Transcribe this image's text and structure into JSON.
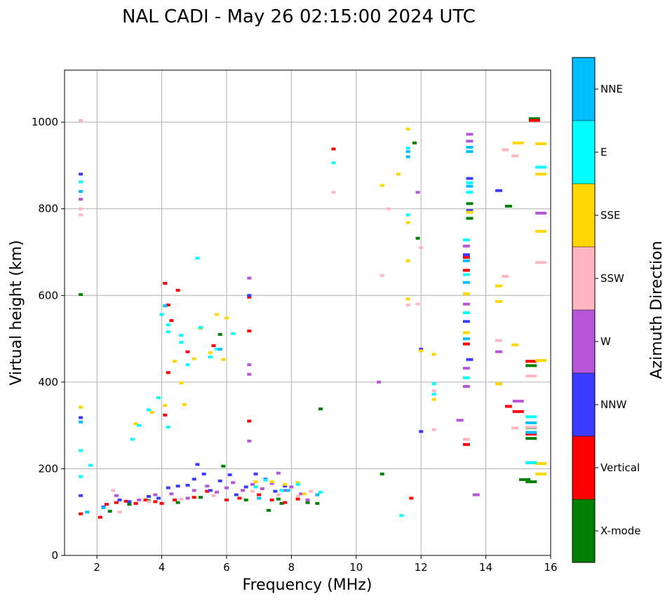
{
  "colors": {
    "X-mode": "#008000",
    "Vertical": "#ff0000",
    "NNW": "#3b3bff",
    "W": "#b557d6",
    "SSW": "#ffb6c1",
    "SSE": "#ffd700",
    "E": "#00ffff",
    "NNE": "#00bfff",
    "grid": "#b0b0b0"
  },
  "chart_data": {
    "type": "scatter",
    "title": "NAL CADI - May 26 02:15:00 2024 UTC",
    "xlabel": "Frequency (MHz)",
    "ylabel": "Virtual height (km)",
    "xlim": [
      1,
      16
    ],
    "ylim": [
      0,
      1120
    ],
    "xticks": [
      2,
      4,
      6,
      8,
      10,
      12,
      14,
      16
    ],
    "yticks": [
      0,
      200,
      400,
      600,
      800,
      1000
    ],
    "grid": true,
    "colorbar": {
      "title": "Azimuth Direction",
      "categories": [
        "X-mode",
        "Vertical",
        "NNW",
        "W",
        "SSW",
        "SSE",
        "E",
        "NNE"
      ]
    },
    "series": [
      {
        "name": "X-mode",
        "points": [
          [
            1.5,
            602
          ],
          [
            2.4,
            102
          ],
          [
            3.0,
            118
          ],
          [
            3.6,
            126
          ],
          [
            4.5,
            122
          ],
          [
            5.2,
            134
          ],
          [
            5.8,
            510
          ],
          [
            5.9,
            206
          ],
          [
            6.6,
            128
          ],
          [
            7.3,
            104
          ],
          [
            7.6,
            130
          ],
          [
            7.7,
            120
          ],
          [
            8.5,
            122
          ],
          [
            8.8,
            120
          ],
          [
            8.9,
            338
          ],
          [
            10.8,
            188
          ],
          [
            11.8,
            952
          ],
          [
            11.9,
            732
          ],
          [
            13.5,
            812
          ],
          [
            13.5,
            778
          ],
          [
            14.7,
            806
          ],
          [
            15.2,
            175
          ],
          [
            15.4,
            170
          ],
          [
            15.4,
            295
          ],
          [
            15.4,
            270
          ],
          [
            15.4,
            438
          ],
          [
            15.5,
            1008
          ]
        ]
      },
      {
        "name": "Vertical",
        "points": [
          [
            1.5,
            96
          ],
          [
            2.1,
            88
          ],
          [
            2.3,
            118
          ],
          [
            2.6,
            122
          ],
          [
            2.9,
            125
          ],
          [
            3.2,
            120
          ],
          [
            3.5,
            128
          ],
          [
            3.8,
            124
          ],
          [
            4.0,
            120
          ],
          [
            4.1,
            628
          ],
          [
            4.2,
            578
          ],
          [
            4.3,
            542
          ],
          [
            4.2,
            422
          ],
          [
            4.1,
            324
          ],
          [
            4.4,
            128
          ],
          [
            4.5,
            612
          ],
          [
            4.8,
            470
          ],
          [
            5.0,
            134
          ],
          [
            5.4,
            148
          ],
          [
            5.6,
            484
          ],
          [
            6.0,
            128
          ],
          [
            6.4,
            132
          ],
          [
            6.7,
            596
          ],
          [
            6.7,
            518
          ],
          [
            6.7,
            310
          ],
          [
            7.0,
            140
          ],
          [
            7.4,
            128
          ],
          [
            7.8,
            122
          ],
          [
            8.2,
            130
          ],
          [
            9.3,
            938
          ],
          [
            11.7,
            132
          ],
          [
            13.4,
            688
          ],
          [
            13.4,
            658
          ],
          [
            13.4,
            488
          ],
          [
            13.4,
            256
          ],
          [
            14.7,
            344
          ],
          [
            15.0,
            332
          ],
          [
            15.4,
            280
          ],
          [
            15.4,
            448
          ],
          [
            15.5,
            1004
          ]
        ]
      },
      {
        "name": "NNW",
        "points": [
          [
            1.5,
            880
          ],
          [
            1.5,
            318
          ],
          [
            1.5,
            138
          ],
          [
            2.2,
            112
          ],
          [
            2.7,
            128
          ],
          [
            3.0,
            124
          ],
          [
            3.6,
            136
          ],
          [
            3.9,
            132
          ],
          [
            4.2,
            156
          ],
          [
            4.5,
            160
          ],
          [
            4.8,
            162
          ],
          [
            5.0,
            176
          ],
          [
            5.1,
            210
          ],
          [
            5.3,
            188
          ],
          [
            5.5,
            150
          ],
          [
            5.8,
            172
          ],
          [
            6.1,
            186
          ],
          [
            6.3,
            140
          ],
          [
            6.6,
            158
          ],
          [
            6.7,
            600
          ],
          [
            6.9,
            188
          ],
          [
            7.2,
            176
          ],
          [
            7.5,
            148
          ],
          [
            7.8,
            160
          ],
          [
            12.0,
            476
          ],
          [
            12.0,
            286
          ],
          [
            13.5,
            870
          ],
          [
            13.5,
            796
          ],
          [
            13.4,
            694
          ],
          [
            13.4,
            540
          ],
          [
            13.5,
            452
          ],
          [
            14.4,
            842
          ],
          [
            15.4,
            214
          ]
        ]
      },
      {
        "name": "W",
        "points": [
          [
            1.5,
            822
          ],
          [
            2.6,
            138
          ],
          [
            3.3,
            128
          ],
          [
            3.8,
            140
          ],
          [
            4.3,
            142
          ],
          [
            4.8,
            132
          ],
          [
            5.0,
            150
          ],
          [
            5.4,
            160
          ],
          [
            5.7,
            146
          ],
          [
            6.0,
            156
          ],
          [
            6.2,
            168
          ],
          [
            6.5,
            150
          ],
          [
            6.7,
            640
          ],
          [
            6.7,
            440
          ],
          [
            6.7,
            418
          ],
          [
            6.7,
            264
          ],
          [
            6.8,
            164
          ],
          [
            7.1,
            154
          ],
          [
            7.4,
            166
          ],
          [
            7.6,
            190
          ],
          [
            7.8,
            150
          ],
          [
            8.0,
            158
          ],
          [
            8.3,
            142
          ],
          [
            8.5,
            128
          ],
          [
            10.7,
            400
          ],
          [
            11.9,
            838
          ],
          [
            13.2,
            312
          ],
          [
            13.5,
            972
          ],
          [
            13.5,
            956
          ],
          [
            13.4,
            714
          ],
          [
            13.4,
            580
          ],
          [
            13.4,
            432
          ],
          [
            13.4,
            390
          ],
          [
            13.7,
            140
          ],
          [
            14.4,
            470
          ],
          [
            15.0,
            356
          ],
          [
            15.7,
            790
          ]
        ]
      },
      {
        "name": "SSW",
        "points": [
          [
            1.5,
            1004
          ],
          [
            1.5,
            800
          ],
          [
            1.5,
            786
          ],
          [
            2.5,
            150
          ],
          [
            2.7,
            100
          ],
          [
            3.6,
            124
          ],
          [
            4.6,
            130
          ],
          [
            5.6,
            138
          ],
          [
            6.8,
            148
          ],
          [
            7.6,
            140
          ],
          [
            8.2,
            136
          ],
          [
            8.6,
            148
          ],
          [
            9.3,
            838
          ],
          [
            10.8,
            646
          ],
          [
            11.0,
            800
          ],
          [
            11.6,
            578
          ],
          [
            11.9,
            580
          ],
          [
            12.0,
            710
          ],
          [
            12.4,
            380
          ],
          [
            12.4,
            290
          ],
          [
            13.4,
            268
          ],
          [
            14.4,
            496
          ],
          [
            14.6,
            936
          ],
          [
            14.6,
            644
          ],
          [
            14.9,
            294
          ],
          [
            14.9,
            922
          ],
          [
            15.4,
            296
          ],
          [
            15.4,
            414
          ],
          [
            15.7,
            676
          ]
        ]
      },
      {
        "name": "SSE",
        "points": [
          [
            1.5,
            342
          ],
          [
            3.2,
            304
          ],
          [
            3.7,
            330
          ],
          [
            4.1,
            346
          ],
          [
            4.4,
            448
          ],
          [
            4.6,
            398
          ],
          [
            4.7,
            348
          ],
          [
            5.0,
            454
          ],
          [
            5.2,
            524
          ],
          [
            5.5,
            468
          ],
          [
            5.7,
            556
          ],
          [
            5.9,
            452
          ],
          [
            6.0,
            548
          ],
          [
            6.9,
            170
          ],
          [
            7.4,
            170
          ],
          [
            7.8,
            164
          ],
          [
            8.2,
            168
          ],
          [
            8.4,
            142
          ],
          [
            10.8,
            854
          ],
          [
            11.3,
            880
          ],
          [
            11.6,
            984
          ],
          [
            11.6,
            592
          ],
          [
            11.6,
            680
          ],
          [
            11.6,
            768
          ],
          [
            12.0,
            472
          ],
          [
            12.4,
            464
          ],
          [
            12.4,
            360
          ],
          [
            13.5,
            792
          ],
          [
            13.4,
            604
          ],
          [
            13.4,
            514
          ],
          [
            14.4,
            622
          ],
          [
            14.4,
            586
          ],
          [
            14.4,
            396
          ],
          [
            14.9,
            486
          ],
          [
            15.0,
            952
          ],
          [
            15.7,
            950
          ],
          [
            15.7,
            880
          ],
          [
            15.7,
            748
          ],
          [
            15.7,
            450
          ],
          [
            15.7,
            212
          ],
          [
            15.7,
            188
          ]
        ]
      },
      {
        "name": "E",
        "points": [
          [
            1.5,
            862
          ],
          [
            1.5,
            242
          ],
          [
            1.5,
            182
          ],
          [
            1.8,
            208
          ],
          [
            3.1,
            268
          ],
          [
            3.3,
            300
          ],
          [
            3.6,
            336
          ],
          [
            3.9,
            364
          ],
          [
            4.0,
            556
          ],
          [
            4.2,
            532
          ],
          [
            4.2,
            516
          ],
          [
            4.2,
            296
          ],
          [
            4.6,
            508
          ],
          [
            4.6,
            492
          ],
          [
            4.8,
            440
          ],
          [
            5.1,
            686
          ],
          [
            5.2,
            526
          ],
          [
            5.5,
            458
          ],
          [
            5.7,
            476
          ],
          [
            6.2,
            512
          ],
          [
            6.9,
            158
          ],
          [
            7.2,
            174
          ],
          [
            7.7,
            150
          ],
          [
            8.2,
            164
          ],
          [
            8.9,
            146
          ],
          [
            9.3,
            906
          ],
          [
            11.4,
            92
          ],
          [
            11.6,
            940
          ],
          [
            11.6,
            786
          ],
          [
            12.4,
            396
          ],
          [
            12.4,
            372
          ],
          [
            13.5,
            860
          ],
          [
            13.5,
            838
          ],
          [
            13.4,
            728
          ],
          [
            13.4,
            648
          ],
          [
            13.4,
            560
          ],
          [
            13.4,
            410
          ],
          [
            15.4,
            320
          ],
          [
            15.4,
            214
          ],
          [
            15.7,
            896
          ]
        ]
      },
      {
        "name": "NNE",
        "points": [
          [
            1.5,
            840
          ],
          [
            1.5,
            308
          ],
          [
            1.7,
            100
          ],
          [
            2.2,
            110
          ],
          [
            4.1,
            576
          ],
          [
            5.8,
            476
          ],
          [
            7.0,
            132
          ],
          [
            7.9,
            150
          ],
          [
            8.8,
            140
          ],
          [
            11.6,
            932
          ],
          [
            11.6,
            920
          ],
          [
            13.5,
            942
          ],
          [
            13.5,
            932
          ],
          [
            13.5,
            852
          ],
          [
            13.4,
            680
          ],
          [
            13.4,
            630
          ],
          [
            13.4,
            500
          ],
          [
            15.4,
            306
          ],
          [
            15.4,
            284
          ]
        ]
      }
    ]
  }
}
